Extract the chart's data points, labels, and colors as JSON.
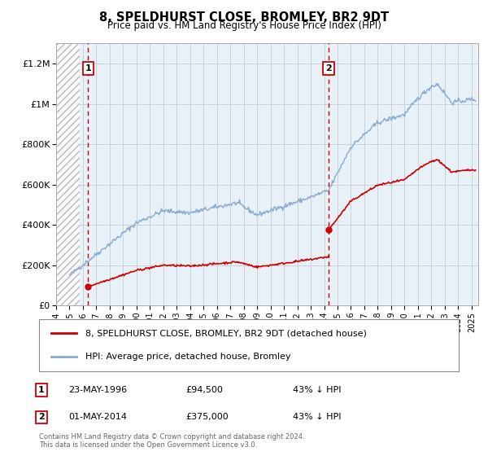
{
  "title": "8, SPELDHURST CLOSE, BROMLEY, BR2 9DT",
  "subtitle": "Price paid vs. HM Land Registry's House Price Index (HPI)",
  "ylabel_ticks": [
    "£0",
    "£200K",
    "£400K",
    "£600K",
    "£800K",
    "£1M",
    "£1.2M"
  ],
  "ytick_values": [
    0,
    200000,
    400000,
    600000,
    800000,
    1000000,
    1200000
  ],
  "ylim": [
    0,
    1300000
  ],
  "xlim_start": 1994.0,
  "xlim_end": 2025.5,
  "hatch_end_year": 1995.75,
  "sale1_year": 1996.39,
  "sale1_price": 94500,
  "sale2_year": 2014.33,
  "sale2_price": 375000,
  "sale1_label": "23-MAY-1996",
  "sale1_amount": "£94,500",
  "sale1_pct": "43% ↓ HPI",
  "sale2_label": "01-MAY-2014",
  "sale2_amount": "£375,000",
  "sale2_pct": "43% ↓ HPI",
  "legend1": "8, SPELDHURST CLOSE, BROMLEY, BR2 9DT (detached house)",
  "legend2": "HPI: Average price, detached house, Bromley",
  "footer1": "Contains HM Land Registry data © Crown copyright and database right 2024.",
  "footer2": "This data is licensed under the Open Government Licence v3.0.",
  "line_color_red": "#cc0000",
  "line_color_blue": "#88aacc",
  "bg_color": "#e8f0f8",
  "grid_color": "#c8d0d8"
}
